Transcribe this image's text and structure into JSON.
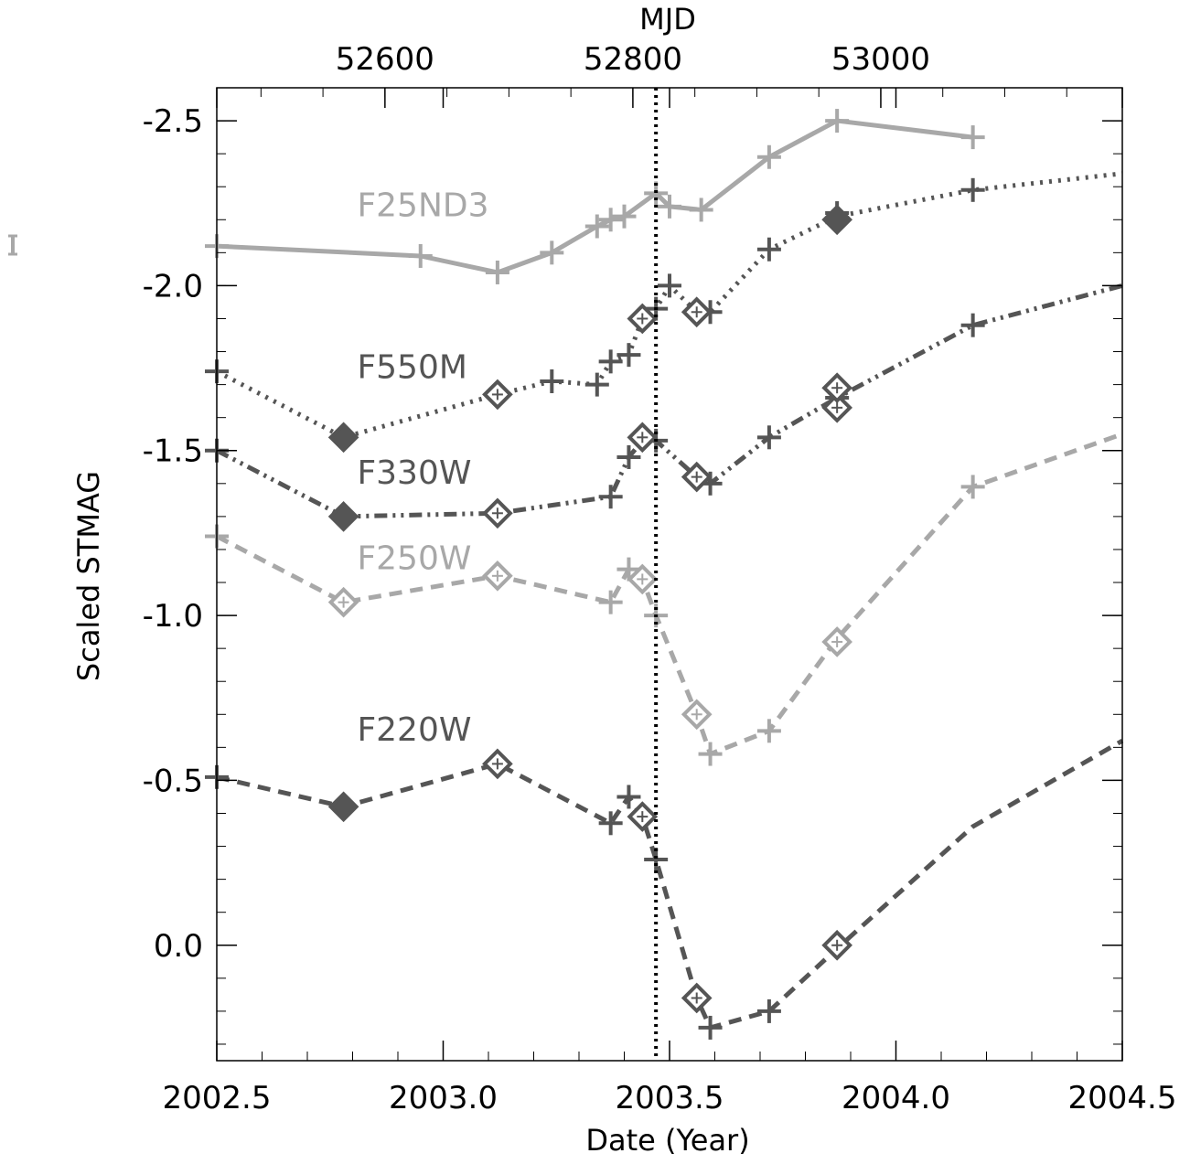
{
  "chart_data": {
    "type": "line",
    "xlabel": "Date (Year)",
    "ylabel": "Scaled STMAG",
    "x2label": "MJD",
    "xlim": [
      2002.5,
      2004.5
    ],
    "ylim": [
      0.35,
      -2.6
    ],
    "y_reversed": true,
    "grid": false,
    "x_ticks": [
      2002.5,
      2003.0,
      2003.5,
      2004.0,
      2004.5
    ],
    "x_tick_labels": [
      "2002.5",
      "2003.0",
      "2003.5",
      "2004.0",
      "2004.5"
    ],
    "y_ticks": [
      -2.5,
      -2.0,
      -1.5,
      -1.0,
      -0.5,
      0.0
    ],
    "y_tick_labels": [
      "-2.5",
      "-2.0",
      "-1.5",
      "-1.0",
      "-0.5",
      "0.0"
    ],
    "mjd_ticks": [
      52600,
      52800,
      53000
    ],
    "mjd_tick_labels": [
      "52600",
      "52800",
      "53000"
    ],
    "vertical_line_x": 2003.47,
    "colors": {
      "light": "#a8a8a8",
      "dark": "#555555",
      "axis": "#000000"
    },
    "series": [
      {
        "name": "F25ND3",
        "color": "#a8a8a8",
        "line_style": "solid",
        "points": [
          [
            2002.5,
            -2.12
          ],
          [
            2002.95,
            -2.09
          ],
          [
            2003.12,
            -2.04
          ],
          [
            2003.24,
            -2.1
          ],
          [
            2003.34,
            -2.18
          ],
          [
            2003.37,
            -2.2
          ],
          [
            2003.4,
            -2.21
          ],
          [
            2003.47,
            -2.28
          ],
          [
            2003.5,
            -2.24
          ],
          [
            2003.57,
            -2.23
          ],
          [
            2003.72,
            -2.39
          ],
          [
            2003.87,
            -2.5
          ],
          [
            2004.17,
            -2.45
          ]
        ],
        "crosses": [
          [
            2002.5,
            -2.12
          ],
          [
            2002.95,
            -2.09
          ],
          [
            2003.12,
            -2.04
          ],
          [
            2003.24,
            -2.1
          ],
          [
            2003.34,
            -2.18
          ],
          [
            2003.37,
            -2.2
          ],
          [
            2003.4,
            -2.21
          ],
          [
            2003.47,
            -2.28
          ],
          [
            2003.5,
            -2.24
          ],
          [
            2003.57,
            -2.23
          ],
          [
            2003.72,
            -2.39
          ],
          [
            2003.87,
            -2.5
          ],
          [
            2004.17,
            -2.45
          ]
        ],
        "diamonds": [],
        "label_point": [
          2002.81,
          -2.21
        ]
      },
      {
        "name": "F550M",
        "color": "#555555",
        "line_style": "dotted",
        "points": [
          [
            2002.5,
            -1.74
          ],
          [
            2002.78,
            -1.54
          ],
          [
            2003.12,
            -1.67
          ],
          [
            2003.24,
            -1.71
          ],
          [
            2003.34,
            -1.7
          ],
          [
            2003.37,
            -1.77
          ],
          [
            2003.41,
            -1.79
          ],
          [
            2003.44,
            -1.9
          ],
          [
            2003.47,
            -1.93
          ],
          [
            2003.5,
            -2.0
          ],
          [
            2003.56,
            -1.92
          ],
          [
            2003.59,
            -1.92
          ],
          [
            2003.72,
            -2.11
          ],
          [
            2003.87,
            -2.21
          ],
          [
            2004.17,
            -2.29
          ],
          [
            2004.5,
            -2.34
          ]
        ],
        "crosses": [
          [
            2002.5,
            -1.74
          ],
          [
            2003.24,
            -1.71
          ],
          [
            2003.34,
            -1.7
          ],
          [
            2003.37,
            -1.77
          ],
          [
            2003.41,
            -1.79
          ],
          [
            2003.47,
            -1.93
          ],
          [
            2003.5,
            -2.0
          ],
          [
            2003.59,
            -1.92
          ],
          [
            2003.72,
            -2.11
          ],
          [
            2003.87,
            -2.22
          ],
          [
            2004.17,
            -2.29
          ]
        ],
        "diamonds": [
          [
            2002.78,
            -1.54,
            true
          ],
          [
            2003.12,
            -1.67,
            false
          ],
          [
            2003.44,
            -1.9,
            false
          ],
          [
            2003.56,
            -1.92,
            false
          ],
          [
            2003.87,
            -2.2,
            true
          ]
        ],
        "label_point": [
          2002.81,
          -1.72
        ]
      },
      {
        "name": "F330W",
        "color": "#555555",
        "line_style": "dash-dot-dot",
        "points": [
          [
            2002.5,
            -1.5
          ],
          [
            2002.78,
            -1.3
          ],
          [
            2003.12,
            -1.31
          ],
          [
            2003.37,
            -1.36
          ],
          [
            2003.41,
            -1.48
          ],
          [
            2003.44,
            -1.53
          ],
          [
            2003.47,
            -1.53
          ],
          [
            2003.56,
            -1.42
          ],
          [
            2003.59,
            -1.4
          ],
          [
            2003.72,
            -1.54
          ],
          [
            2003.87,
            -1.66
          ],
          [
            2004.17,
            -1.88
          ],
          [
            2004.5,
            -2.0
          ]
        ],
        "crosses": [
          [
            2002.5,
            -1.5
          ],
          [
            2003.37,
            -1.36
          ],
          [
            2003.41,
            -1.48
          ],
          [
            2003.47,
            -1.53
          ],
          [
            2003.59,
            -1.4
          ],
          [
            2003.72,
            -1.54
          ],
          [
            2003.87,
            -1.66
          ],
          [
            2004.17,
            -1.88
          ]
        ],
        "diamonds": [
          [
            2002.78,
            -1.3,
            true
          ],
          [
            2003.12,
            -1.31,
            false
          ],
          [
            2003.44,
            -1.54,
            false
          ],
          [
            2003.56,
            -1.42,
            false
          ],
          [
            2003.87,
            -1.63,
            false
          ],
          [
            2003.87,
            -1.69,
            false
          ]
        ],
        "label_point": [
          2002.81,
          -1.4
        ]
      },
      {
        "name": "F250W",
        "color": "#a8a8a8",
        "line_style": "dashed",
        "points": [
          [
            2002.5,
            -1.24
          ],
          [
            2002.78,
            -1.04
          ],
          [
            2003.12,
            -1.12
          ],
          [
            2003.37,
            -1.04
          ],
          [
            2003.41,
            -1.14
          ],
          [
            2003.44,
            -1.11
          ],
          [
            2003.47,
            -1.0
          ],
          [
            2003.56,
            -0.7
          ],
          [
            2003.59,
            -0.58
          ],
          [
            2003.72,
            -0.65
          ],
          [
            2003.87,
            -0.93
          ],
          [
            2004.17,
            -1.39
          ],
          [
            2004.5,
            -1.55
          ]
        ],
        "crosses": [
          [
            2002.5,
            -1.24
          ],
          [
            2003.37,
            -1.04
          ],
          [
            2003.41,
            -1.14
          ],
          [
            2003.47,
            -1.0
          ],
          [
            2003.59,
            -0.58
          ],
          [
            2003.72,
            -0.65
          ],
          [
            2004.17,
            -1.39
          ]
        ],
        "diamonds": [
          [
            2002.78,
            -1.04,
            false
          ],
          [
            2003.12,
            -1.12,
            false
          ],
          [
            2003.44,
            -1.11,
            false
          ],
          [
            2003.56,
            -0.7,
            false
          ],
          [
            2003.87,
            -0.92,
            false
          ]
        ],
        "label_point": [
          2002.81,
          -1.14
        ]
      },
      {
        "name": "F220W",
        "color": "#555555",
        "line_style": "dashed",
        "points": [
          [
            2002.5,
            -0.51
          ],
          [
            2002.78,
            -0.42
          ],
          [
            2003.12,
            -0.55
          ],
          [
            2003.37,
            -0.37
          ],
          [
            2003.41,
            -0.45
          ],
          [
            2003.44,
            -0.39
          ],
          [
            2003.47,
            -0.26
          ],
          [
            2003.56,
            0.16
          ],
          [
            2003.59,
            0.25
          ],
          [
            2003.72,
            0.2
          ],
          [
            2003.87,
            0.01
          ],
          [
            2004.17,
            -0.36
          ],
          [
            2004.5,
            -0.62
          ]
        ],
        "crosses": [
          [
            2002.5,
            -0.51
          ],
          [
            2003.37,
            -0.37
          ],
          [
            2003.41,
            -0.45
          ],
          [
            2003.47,
            -0.26
          ],
          [
            2003.59,
            0.25
          ],
          [
            2003.72,
            0.2
          ]
        ],
        "diamonds": [
          [
            2002.78,
            -0.42,
            true
          ],
          [
            2003.12,
            -0.55,
            false
          ],
          [
            2003.44,
            -0.39,
            false
          ],
          [
            2003.56,
            0.16,
            false
          ],
          [
            2003.87,
            0.0,
            false
          ]
        ],
        "label_point": [
          2002.81,
          -0.62
        ]
      }
    ]
  }
}
